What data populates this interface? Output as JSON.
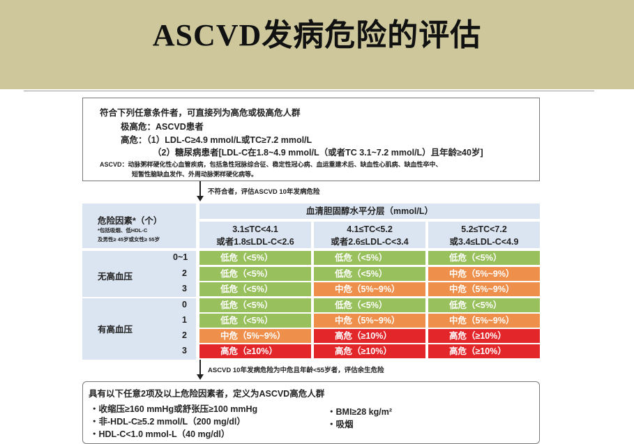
{
  "title": "ASCVD发病危险的评估",
  "box1": {
    "heading": "符合下列任意条件者，可直接列为高危或极高危人群",
    "very_high": "极高危：ASCVD患者",
    "high_label": "高危：（1）LDL-C≥4.9 mmol/L或TC≥7.2 mmol/L",
    "high_2": "（2）糖尿病患者[LDL-C在1.8~4.9 mmol/L（或者TC 3.1~7.2 mmol/L）且年龄≥40岁]",
    "ascvd_def_1": "ASCVD：动脉粥样硬化性心血管疾病，包括急性冠脉综合征、稳定性冠心病、血运重建术后、缺血性心肌病、缺血性卒中、",
    "ascvd_def_2": "短暂性脑缺血发作、外周动脉粥样硬化病等。"
  },
  "arrow1_note": "不符合者，评估ASCVD 10年发病危险",
  "arrow2_note": "ASCVD 10年发病危险为中危且年龄<55岁者，评估余生危险",
  "table": {
    "risk_factor_header": "危险因素*（个）",
    "risk_factor_note_1": "*包括吸烟、低HDL-C",
    "risk_factor_note_2": "及男性≥ 45岁或女性≥ 55岁",
    "chol_header": "血清胆固醇水平分层（mmol/L）",
    "col1_a": "3.1≤TC<4.1",
    "col1_b": "或者1.8≤LDL-C<2.6",
    "col2_a": "4.1≤TC<5.2",
    "col2_b": "或者2.6≤LDL-C<3.4",
    "col3_a": "5.2≤TC<7.2",
    "col3_b": "或3.4≤LDL-C<4.9",
    "group1": "无高血压",
    "group2": "有高血压",
    "rows": [
      {
        "n": "0~1",
        "c": [
          "低危（<5%）",
          "低危（<5%）",
          "低危（<5%）"
        ],
        "k": [
          "low",
          "low",
          "low"
        ]
      },
      {
        "n": "2",
        "c": [
          "低危（<5%）",
          "低危（<5%）",
          "中危（5%~9%）"
        ],
        "k": [
          "low",
          "low",
          "mid"
        ]
      },
      {
        "n": "3",
        "c": [
          "低危（<5%）",
          "中危（5%~9%）",
          "中危（5%~9%）"
        ],
        "k": [
          "low",
          "mid",
          "mid"
        ]
      },
      {
        "n": "0",
        "c": [
          "低危（<5%）",
          "低危（<5%）",
          "低危（<5%）"
        ],
        "k": [
          "low",
          "low",
          "low"
        ]
      },
      {
        "n": "1",
        "c": [
          "低危（<5%）",
          "中危（5%~9%）",
          "中危（5%~9%）"
        ],
        "k": [
          "low",
          "mid",
          "mid"
        ]
      },
      {
        "n": "2",
        "c": [
          "中危（5%~9%）",
          "高危（≥10%）",
          "高危（≥10%）"
        ],
        "k": [
          "mid",
          "high",
          "high"
        ]
      },
      {
        "n": "3",
        "c": [
          "高危（≥10%）",
          "高危（≥10%）",
          "高危（≥10%）"
        ],
        "k": [
          "high",
          "high",
          "high"
        ]
      }
    ]
  },
  "box2": {
    "heading": "具有以下任意2项及以上危险因素者，定义为ASCVD高危人群",
    "items_left": [
      "・收缩压≥160 mmHg或舒张压≥100 mmHg",
      "・非-HDL-C≥5.2 mmol/L（200 mg/dl）",
      "・HDL-C<1.0 mmol-L（40 mg/dl）"
    ],
    "items_right": [
      "・BMI≥28 kg/m²",
      "・吸烟"
    ]
  }
}
